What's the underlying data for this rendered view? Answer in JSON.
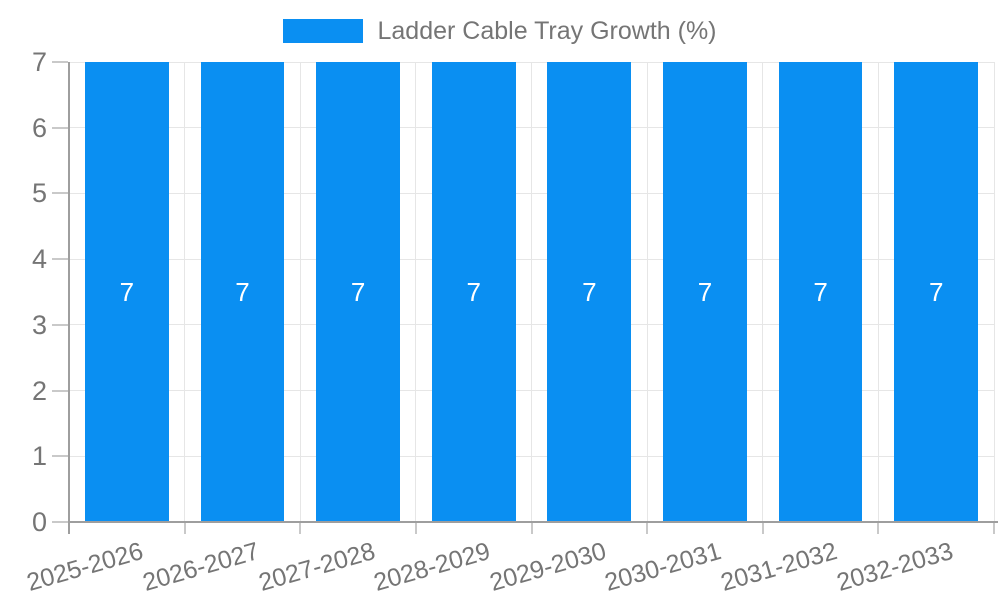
{
  "legend": {
    "label": "Ladder Cable Tray Growth (%)"
  },
  "chart_data": {
    "type": "bar",
    "categories": [
      "2025-2026",
      "2026-2027",
      "2027-2028",
      "2028-2029",
      "2029-2030",
      "2030-2031",
      "2031-2032",
      "2032-2033"
    ],
    "series": [
      {
        "name": "Ladder Cable Tray Growth (%)",
        "values": [
          7,
          7,
          7,
          7,
          7,
          7,
          7,
          7
        ]
      }
    ],
    "bar_value_labels": [
      "7",
      "7",
      "7",
      "7",
      "7",
      "7",
      "7",
      "7"
    ],
    "title": "",
    "xlabel": "",
    "ylabel": "",
    "ylim": [
      0,
      7
    ],
    "yticks": [
      0,
      1,
      2,
      3,
      4,
      5,
      6,
      7
    ],
    "grid": true,
    "legend_position": "top"
  },
  "colors": {
    "bar": "#0a8ff2",
    "text": "#757575",
    "grid": "#e6e6e6",
    "axis": "#9e9e9e",
    "tick": "#c9c9c9",
    "value_label": "#ffffff",
    "background": "#ffffff"
  }
}
